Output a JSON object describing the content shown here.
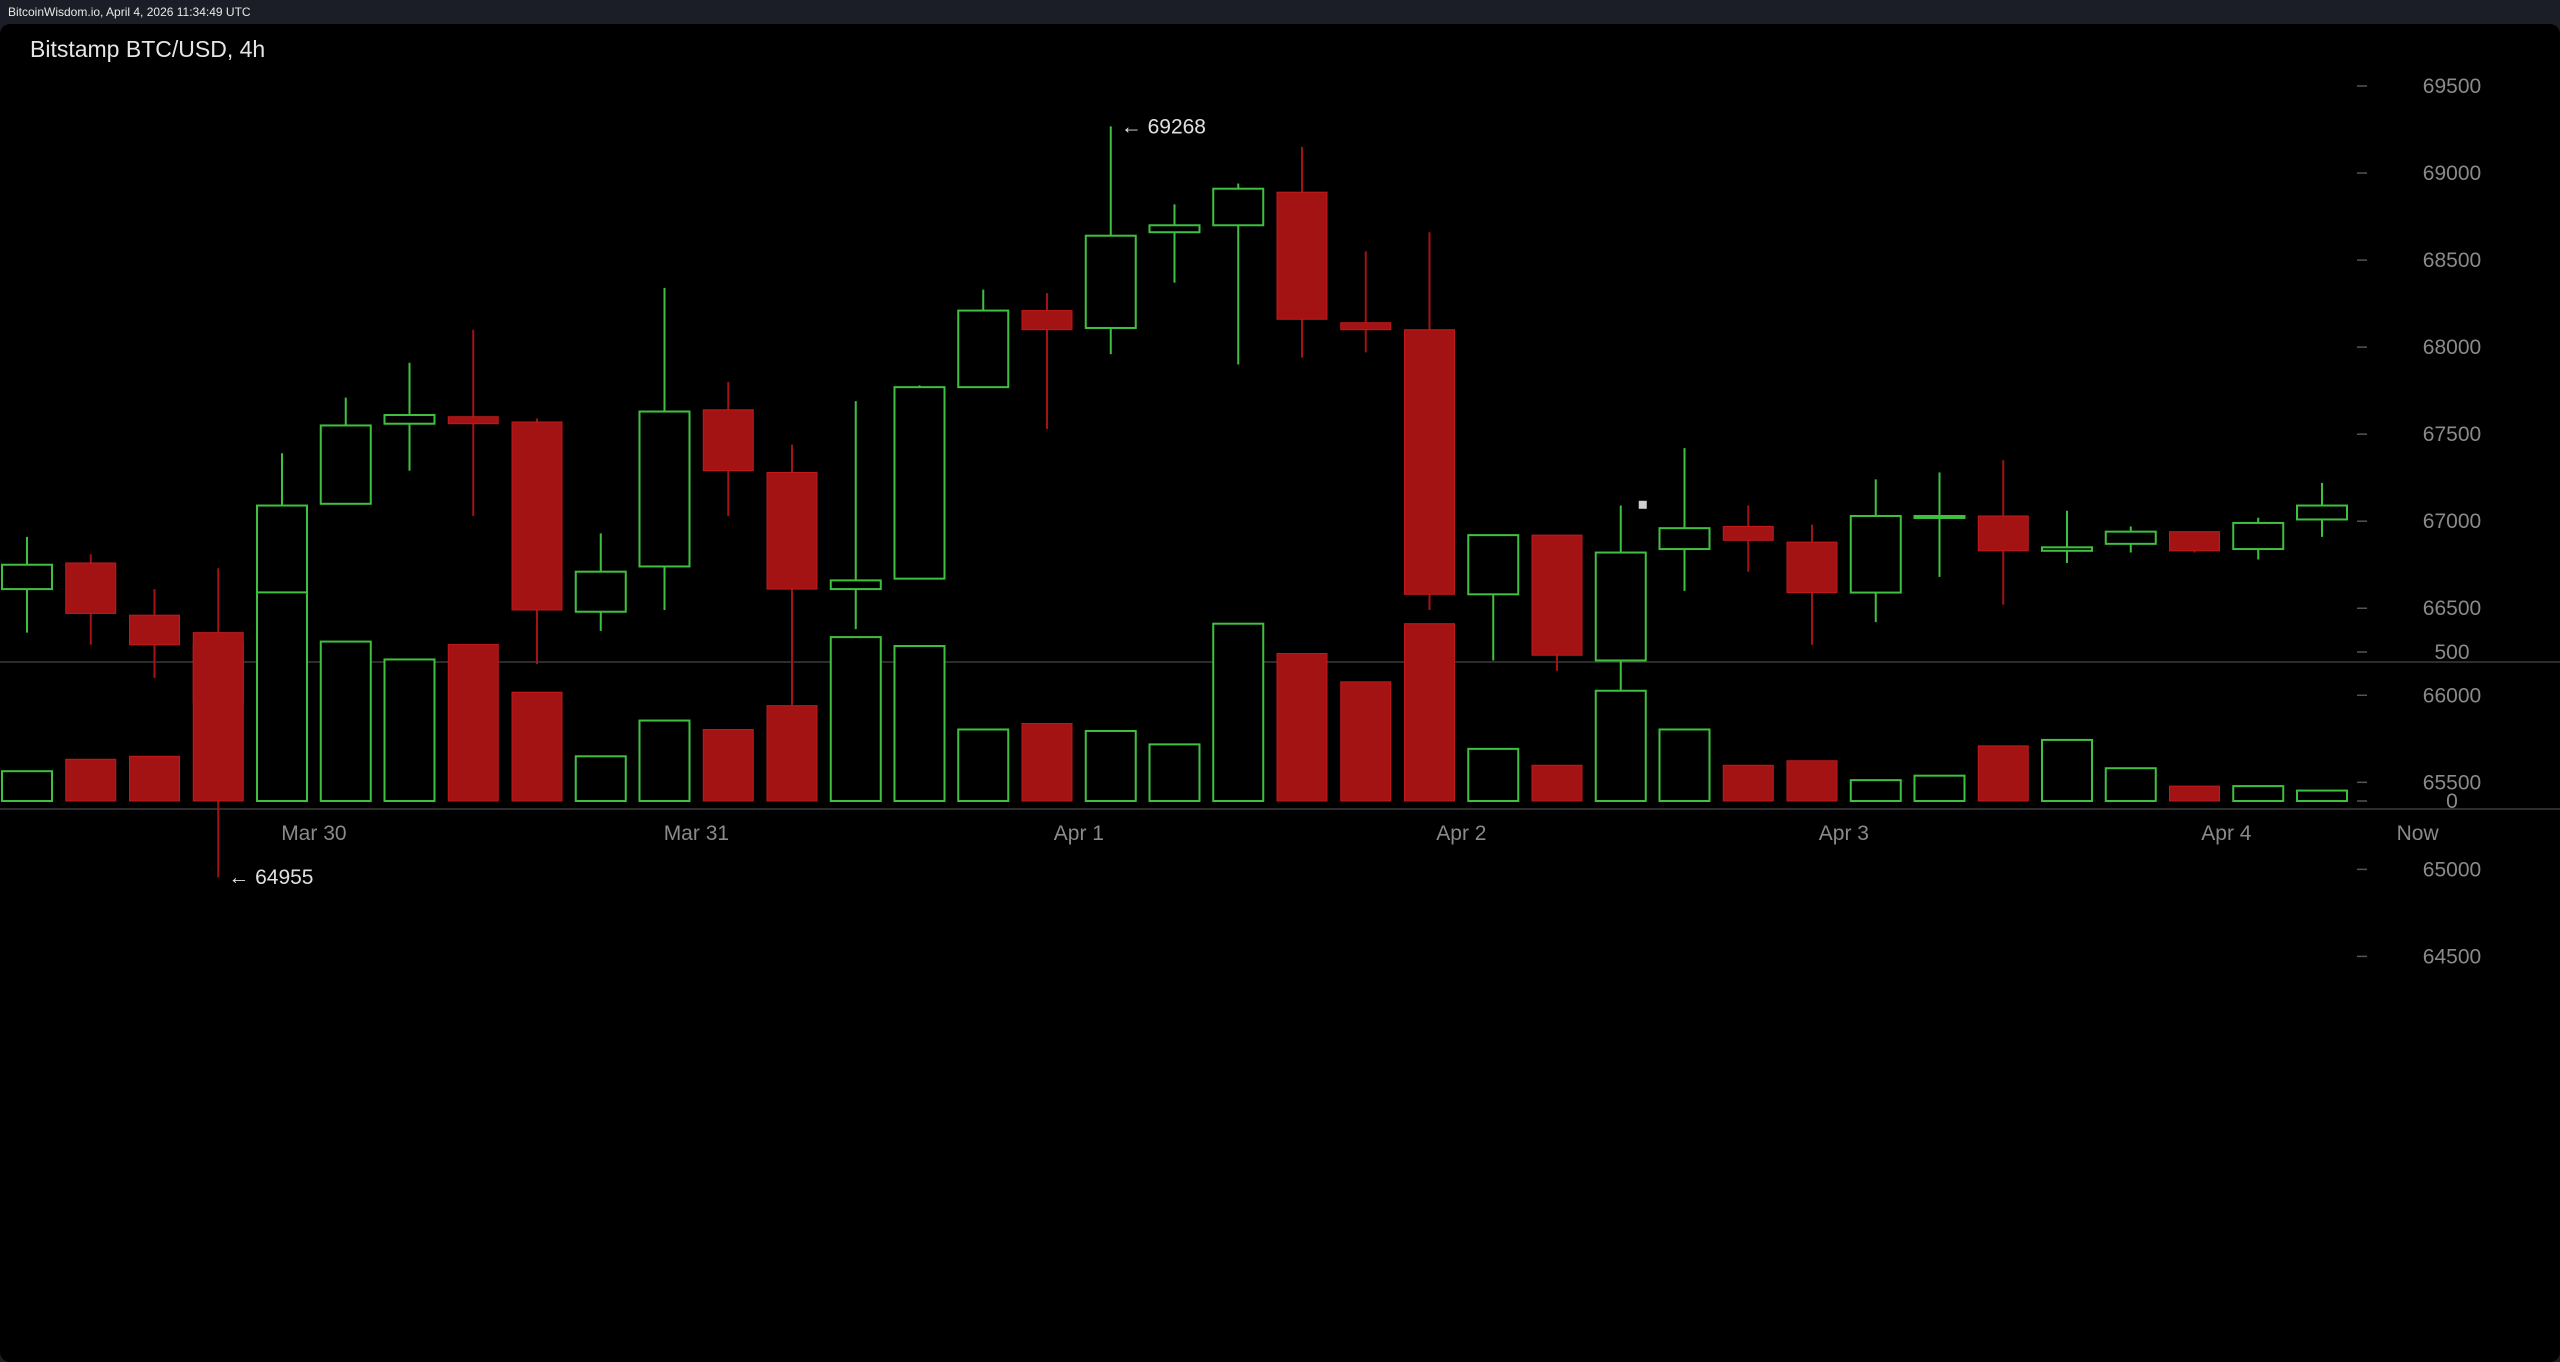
{
  "header": {
    "source_line": "BitcoinWisdom.io, April 4, 2026 11:34:49 UTC"
  },
  "chart_title": "Bitstamp BTC/USD, 4h",
  "colors": {
    "up": "#3fc13f",
    "down": "#a31313",
    "background": "#000000",
    "axis_text": "#8a8a8a"
  },
  "chart_data": {
    "type": "candlestick",
    "title": "Bitstamp BTC/USD, 4h",
    "price_axis": {
      "ticks": [
        64500,
        65000,
        65500,
        66000,
        66500,
        67000,
        67500,
        68000,
        68500,
        69000,
        69500
      ],
      "range": [
        64200,
        69750
      ]
    },
    "volume_axis": {
      "ticks": [
        0,
        500
      ],
      "range": [
        0,
        700
      ]
    },
    "x_labels": [
      {
        "label": "Mar 30",
        "at_index": 4.5
      },
      {
        "label": "Mar 31",
        "at_index": 10.5
      },
      {
        "label": "Apr 1",
        "at_index": 16.5
      },
      {
        "label": "Apr 2",
        "at_index": 22.5
      },
      {
        "label": "Apr 3",
        "at_index": 28.5
      },
      {
        "label": "Apr 4",
        "at_index": 34.5
      },
      {
        "label": "Now",
        "at_index": 37.5
      }
    ],
    "annotations": [
      {
        "text": "← 69268",
        "index": 17,
        "price": 69268
      },
      {
        "text": "← 64955",
        "index": 3,
        "price": 64955
      }
    ],
    "candles": [
      {
        "o": 66610,
        "h": 66910,
        "l": 66360,
        "c": 66750,
        "v": 100
      },
      {
        "o": 66760,
        "h": 66810,
        "l": 66290,
        "c": 66470,
        "v": 140
      },
      {
        "o": 66460,
        "h": 66610,
        "l": 66100,
        "c": 66290,
        "v": 150
      },
      {
        "o": 66290,
        "h": 66730,
        "l": 64955,
        "c": 65960,
        "v": 565
      },
      {
        "o": 65970,
        "h": 67390,
        "l": 65740,
        "c": 67090,
        "v": 700
      },
      {
        "o": 67100,
        "h": 67710,
        "l": 67100,
        "c": 67550,
        "v": 535
      },
      {
        "o": 67560,
        "h": 67910,
        "l": 67290,
        "c": 67610,
        "v": 475
      },
      {
        "o": 67600,
        "h": 68100,
        "l": 67030,
        "c": 67560,
        "v": 525
      },
      {
        "o": 67570,
        "h": 67590,
        "l": 66180,
        "c": 66490,
        "v": 365
      },
      {
        "o": 66480,
        "h": 66930,
        "l": 66370,
        "c": 66710,
        "v": 150
      },
      {
        "o": 66740,
        "h": 68340,
        "l": 66490,
        "c": 67630,
        "v": 270
      },
      {
        "o": 67640,
        "h": 67800,
        "l": 67030,
        "c": 67290,
        "v": 240
      },
      {
        "o": 67280,
        "h": 67440,
        "l": 65920,
        "c": 66610,
        "v": 320
      },
      {
        "o": 66610,
        "h": 67690,
        "l": 66380,
        "c": 66660,
        "v": 550
      },
      {
        "o": 66670,
        "h": 67780,
        "l": 66670,
        "c": 67770,
        "v": 520
      },
      {
        "o": 67770,
        "h": 68330,
        "l": 67770,
        "c": 68210,
        "v": 240
      },
      {
        "o": 68210,
        "h": 68310,
        "l": 67530,
        "c": 68100,
        "v": 260
      },
      {
        "o": 68110,
        "h": 69268,
        "l": 67960,
        "c": 68640,
        "v": 235
      },
      {
        "o": 68660,
        "h": 68820,
        "l": 68370,
        "c": 68700,
        "v": 190
      },
      {
        "o": 68700,
        "h": 68940,
        "l": 67900,
        "c": 68910,
        "v": 595
      },
      {
        "o": 68890,
        "h": 69150,
        "l": 67940,
        "c": 68160,
        "v": 495
      },
      {
        "o": 68140,
        "h": 68550,
        "l": 67970,
        "c": 68100,
        "v": 400
      },
      {
        "o": 68100,
        "h": 68660,
        "l": 66490,
        "c": 66580,
        "v": 595
      },
      {
        "o": 66580,
        "h": 66920,
        "l": 66200,
        "c": 66920,
        "v": 175
      },
      {
        "o": 66920,
        "h": 66920,
        "l": 66140,
        "c": 66230,
        "v": 120
      },
      {
        "o": 66200,
        "h": 67090,
        "l": 65700,
        "c": 66820,
        "v": 370
      },
      {
        "o": 66840,
        "h": 67420,
        "l": 66600,
        "c": 66960,
        "v": 240
      },
      {
        "o": 66970,
        "h": 67090,
        "l": 66710,
        "c": 66890,
        "v": 120
      },
      {
        "o": 66880,
        "h": 66980,
        "l": 66290,
        "c": 66590,
        "v": 135
      },
      {
        "o": 66590,
        "h": 67240,
        "l": 66420,
        "c": 67030,
        "v": 70
      },
      {
        "o": 67030,
        "h": 67280,
        "l": 66680,
        "c": 67030,
        "v": 85
      },
      {
        "o": 67030,
        "h": 67350,
        "l": 66520,
        "c": 66830,
        "v": 185
      },
      {
        "o": 66830,
        "h": 67060,
        "l": 66760,
        "c": 66850,
        "v": 205
      },
      {
        "o": 66870,
        "h": 66970,
        "l": 66820,
        "c": 66940,
        "v": 110
      },
      {
        "o": 66940,
        "h": 66940,
        "l": 66820,
        "c": 66830,
        "v": 50
      },
      {
        "o": 66840,
        "h": 67020,
        "l": 66780,
        "c": 66990,
        "v": 50
      },
      {
        "o": 67010,
        "h": 67220,
        "l": 66910,
        "c": 67090,
        "v": 35
      }
    ]
  }
}
